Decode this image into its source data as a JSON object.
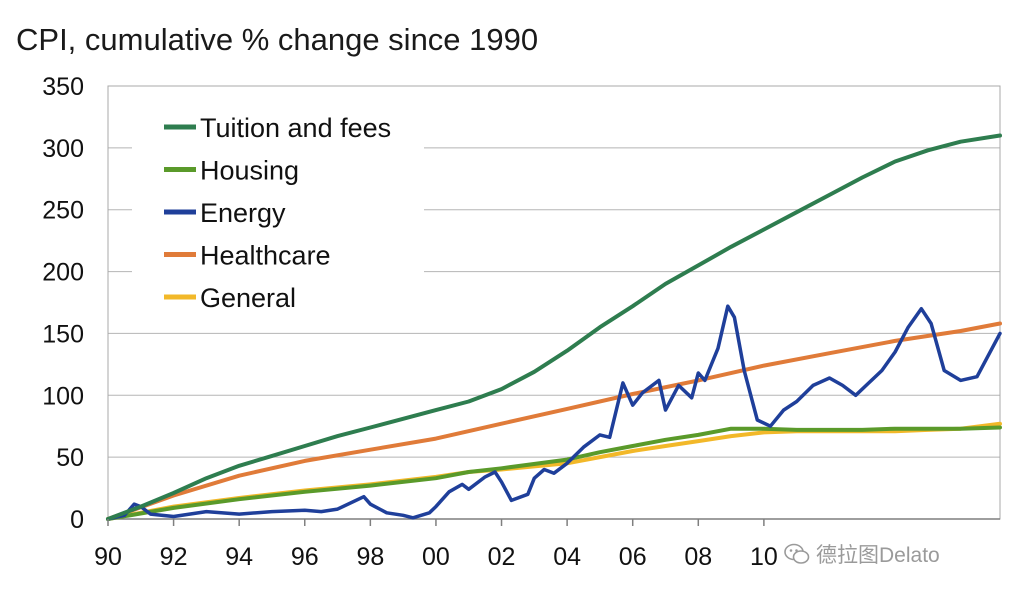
{
  "chart_data": {
    "type": "line",
    "title": "CPI, cumulative % change since 1990",
    "xlabel": "",
    "ylabel": "",
    "xlim": [
      1990,
      2017.2
    ],
    "ylim": [
      0,
      350
    ],
    "yticks": [
      0,
      50,
      100,
      150,
      200,
      250,
      300,
      350
    ],
    "xticks": [
      {
        "value": 1990,
        "label": "90"
      },
      {
        "value": 1992,
        "label": "92"
      },
      {
        "value": 1994,
        "label": "94"
      },
      {
        "value": 1996,
        "label": "96"
      },
      {
        "value": 1998,
        "label": "98"
      },
      {
        "value": 2000,
        "label": "00"
      },
      {
        "value": 2002,
        "label": "02"
      },
      {
        "value": 2004,
        "label": "04"
      },
      {
        "value": 2006,
        "label": "06"
      },
      {
        "value": 2008,
        "label": "08"
      },
      {
        "value": 2010,
        "label": "10"
      }
    ],
    "grid": "horizontal",
    "legend_position": "top-left",
    "series": [
      {
        "name": "Tuition and fees",
        "color": "#2e7d4f",
        "x": [
          1990,
          1991,
          1992,
          1993,
          1994,
          1995,
          1996,
          1997,
          1998,
          1999,
          2000,
          2001,
          2002,
          2003,
          2004,
          2005,
          2006,
          2007,
          2008,
          2009,
          2010,
          2011,
          2012,
          2013,
          2014,
          2015,
          2016,
          2017.2
        ],
        "y": [
          0,
          10,
          21,
          33,
          43,
          51,
          59,
          67,
          74,
          81,
          88,
          95,
          105,
          119,
          136,
          155,
          172,
          190,
          205,
          220,
          234,
          248,
          262,
          276,
          289,
          298,
          305,
          310
        ]
      },
      {
        "name": "Housing",
        "color": "#5a9a2a",
        "x": [
          1990,
          1992,
          1994,
          1996,
          1998,
          2000,
          2001,
          2002,
          2004,
          2005,
          2006,
          2007,
          2008,
          2009,
          2010,
          2011,
          2012,
          2013,
          2014,
          2015,
          2016,
          2017.2
        ],
        "y": [
          0,
          9,
          16,
          22,
          27,
          33,
          38,
          41,
          48,
          54,
          59,
          64,
          68,
          73,
          73,
          72,
          72,
          72,
          73,
          73,
          73,
          74
        ]
      },
      {
        "name": "Energy",
        "color": "#1f3f9a",
        "x": [
          1990,
          1990.5,
          1990.8,
          1991,
          1991.3,
          1992,
          1993,
          1994,
          1995,
          1996,
          1996.5,
          1997,
          1997.8,
          1998,
          1998.5,
          1999,
          1999.3,
          1999.8,
          2000,
          2000.4,
          2000.8,
          2001,
          2001.5,
          2001.8,
          2002,
          2002.3,
          2002.8,
          2003,
          2003.3,
          2003.6,
          2004,
          2004.5,
          2005,
          2005.3,
          2005.7,
          2006,
          2006.3,
          2006.8,
          2007,
          2007.4,
          2007.8,
          2008,
          2008.2,
          2008.4,
          2008.6,
          2008.9,
          2009.1,
          2009.4,
          2009.8,
          2010.2,
          2010.6,
          2011,
          2011.5,
          2012,
          2012.4,
          2012.8,
          2013.2,
          2013.6,
          2014,
          2014.4,
          2014.8,
          2015.1,
          2015.5,
          2016,
          2016.5,
          2017.2
        ],
        "y": [
          0,
          3,
          12,
          10,
          4,
          2,
          6,
          4,
          6,
          7,
          6,
          8,
          18,
          12,
          5,
          3,
          1,
          5,
          10,
          22,
          28,
          24,
          34,
          38,
          30,
          15,
          20,
          33,
          40,
          37,
          45,
          58,
          68,
          66,
          110,
          92,
          102,
          112,
          88,
          108,
          98,
          118,
          112,
          125,
          138,
          172,
          163,
          120,
          80,
          75,
          88,
          95,
          108,
          114,
          108,
          100,
          110,
          120,
          135,
          155,
          170,
          158,
          120,
          112,
          115,
          150
        ]
      },
      {
        "name": "Healthcare",
        "color": "#e07b39",
        "x": [
          1990,
          1992,
          1994,
          1996,
          1998,
          2000,
          2002,
          2004,
          2006,
          2008,
          2010,
          2012,
          2014,
          2016,
          2017.2
        ],
        "y": [
          0,
          19,
          35,
          47,
          56,
          65,
          77,
          89,
          101,
          112,
          124,
          134,
          144,
          152,
          158
        ]
      },
      {
        "name": "General",
        "color": "#f2b829",
        "x": [
          1990,
          1992,
          1994,
          1996,
          1998,
          2000,
          2001,
          2002,
          2004,
          2005,
          2006,
          2007,
          2008,
          2009,
          2010,
          2011,
          2012,
          2013,
          2014,
          2015,
          2016,
          2017.2
        ],
        "y": [
          0,
          10,
          17,
          23,
          28,
          34,
          38,
          40,
          45,
          50,
          55,
          59,
          63,
          67,
          70,
          71,
          71,
          71,
          71,
          72,
          73,
          77
        ]
      }
    ]
  },
  "watermark": {
    "text": "德拉图Delato"
  }
}
